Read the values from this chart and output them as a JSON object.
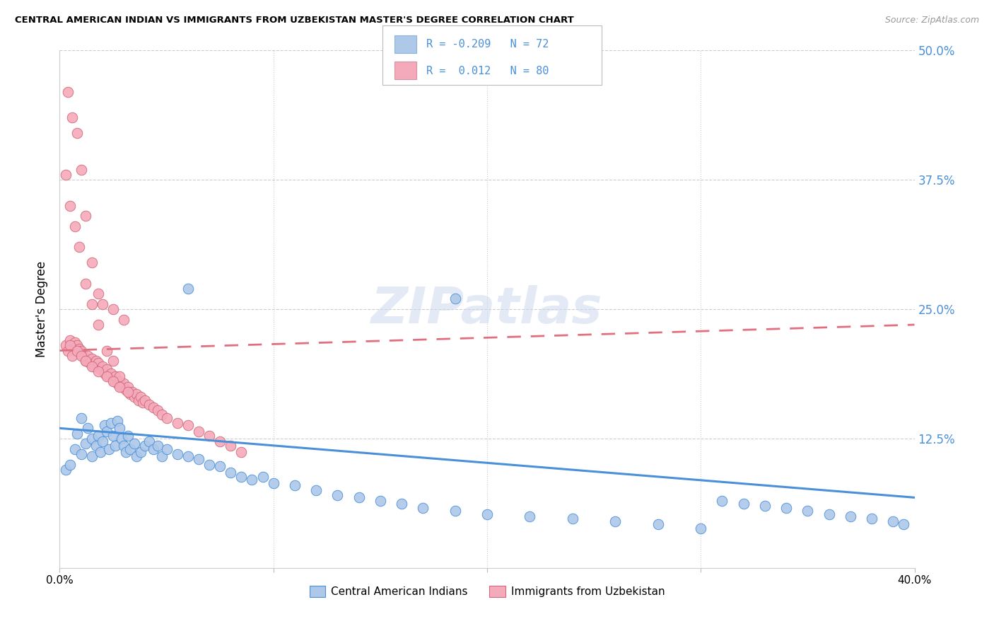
{
  "title": "CENTRAL AMERICAN INDIAN VS IMMIGRANTS FROM UZBEKISTAN MASTER'S DEGREE CORRELATION CHART",
  "source": "Source: ZipAtlas.com",
  "ylabel": "Master's Degree",
  "y_ticks": [
    0.0,
    0.125,
    0.25,
    0.375,
    0.5
  ],
  "y_tick_labels": [
    "",
    "12.5%",
    "25.0%",
    "37.5%",
    "50.0%"
  ],
  "x_ticks": [
    0.0,
    0.1,
    0.2,
    0.3,
    0.4
  ],
  "x_tick_labels": [
    "0.0%",
    "",
    "",
    "",
    "40.0%"
  ],
  "x_range": [
    0.0,
    0.4
  ],
  "y_range": [
    0.0,
    0.5
  ],
  "legend_blue_R": "-0.209",
  "legend_blue_N": "72",
  "legend_pink_R": "0.012",
  "legend_pink_N": "80",
  "legend_label_blue": "Central American Indians",
  "legend_label_pink": "Immigrants from Uzbekistan",
  "color_blue": "#adc8e8",
  "color_pink": "#f5aabb",
  "color_blue_line": "#4a90d9",
  "color_pink_line": "#e07080",
  "watermark": "ZIPatlas",
  "blue_x": [
    0.003,
    0.005,
    0.007,
    0.008,
    0.01,
    0.01,
    0.012,
    0.013,
    0.015,
    0.015,
    0.017,
    0.018,
    0.019,
    0.02,
    0.021,
    0.022,
    0.023,
    0.024,
    0.025,
    0.026,
    0.027,
    0.028,
    0.029,
    0.03,
    0.031,
    0.032,
    0.033,
    0.035,
    0.036,
    0.038,
    0.04,
    0.042,
    0.044,
    0.046,
    0.048,
    0.05,
    0.055,
    0.06,
    0.065,
    0.07,
    0.075,
    0.08,
    0.085,
    0.09,
    0.095,
    0.1,
    0.11,
    0.12,
    0.13,
    0.14,
    0.15,
    0.16,
    0.17,
    0.185,
    0.2,
    0.22,
    0.24,
    0.26,
    0.28,
    0.3,
    0.31,
    0.32,
    0.33,
    0.34,
    0.35,
    0.36,
    0.37,
    0.38,
    0.39,
    0.395,
    0.185,
    0.06
  ],
  "blue_y": [
    0.095,
    0.1,
    0.115,
    0.13,
    0.11,
    0.145,
    0.12,
    0.135,
    0.125,
    0.108,
    0.118,
    0.128,
    0.112,
    0.122,
    0.138,
    0.132,
    0.115,
    0.14,
    0.128,
    0.118,
    0.142,
    0.135,
    0.125,
    0.118,
    0.112,
    0.128,
    0.115,
    0.12,
    0.108,
    0.112,
    0.118,
    0.122,
    0.115,
    0.118,
    0.108,
    0.115,
    0.11,
    0.108,
    0.105,
    0.1,
    0.098,
    0.092,
    0.088,
    0.085,
    0.088,
    0.082,
    0.08,
    0.075,
    0.07,
    0.068,
    0.065,
    0.062,
    0.058,
    0.055,
    0.052,
    0.05,
    0.048,
    0.045,
    0.042,
    0.038,
    0.065,
    0.062,
    0.06,
    0.058,
    0.055,
    0.052,
    0.05,
    0.048,
    0.045,
    0.042,
    0.26,
    0.27
  ],
  "pink_x": [
    0.003,
    0.004,
    0.005,
    0.006,
    0.007,
    0.008,
    0.009,
    0.01,
    0.011,
    0.012,
    0.013,
    0.014,
    0.015,
    0.016,
    0.017,
    0.018,
    0.019,
    0.02,
    0.021,
    0.022,
    0.023,
    0.024,
    0.025,
    0.026,
    0.027,
    0.028,
    0.029,
    0.03,
    0.031,
    0.032,
    0.033,
    0.034,
    0.035,
    0.036,
    0.037,
    0.038,
    0.039,
    0.04,
    0.042,
    0.044,
    0.046,
    0.048,
    0.05,
    0.055,
    0.06,
    0.065,
    0.07,
    0.075,
    0.08,
    0.085,
    0.004,
    0.006,
    0.008,
    0.01,
    0.012,
    0.015,
    0.018,
    0.02,
    0.025,
    0.03,
    0.003,
    0.005,
    0.007,
    0.009,
    0.012,
    0.015,
    0.018,
    0.022,
    0.025,
    0.028,
    0.005,
    0.008,
    0.01,
    0.012,
    0.015,
    0.018,
    0.022,
    0.025,
    0.028,
    0.032
  ],
  "pink_y": [
    0.215,
    0.21,
    0.22,
    0.205,
    0.218,
    0.215,
    0.212,
    0.21,
    0.205,
    0.2,
    0.205,
    0.198,
    0.202,
    0.195,
    0.2,
    0.198,
    0.192,
    0.195,
    0.188,
    0.192,
    0.185,
    0.188,
    0.182,
    0.185,
    0.178,
    0.18,
    0.175,
    0.178,
    0.172,
    0.175,
    0.168,
    0.17,
    0.165,
    0.168,
    0.162,
    0.165,
    0.16,
    0.162,
    0.158,
    0.155,
    0.152,
    0.148,
    0.145,
    0.14,
    0.138,
    0.132,
    0.128,
    0.122,
    0.118,
    0.112,
    0.46,
    0.435,
    0.42,
    0.385,
    0.34,
    0.295,
    0.265,
    0.255,
    0.25,
    0.24,
    0.38,
    0.35,
    0.33,
    0.31,
    0.275,
    0.255,
    0.235,
    0.21,
    0.2,
    0.185,
    0.215,
    0.21,
    0.205,
    0.2,
    0.195,
    0.19,
    0.185,
    0.18,
    0.175,
    0.17
  ]
}
